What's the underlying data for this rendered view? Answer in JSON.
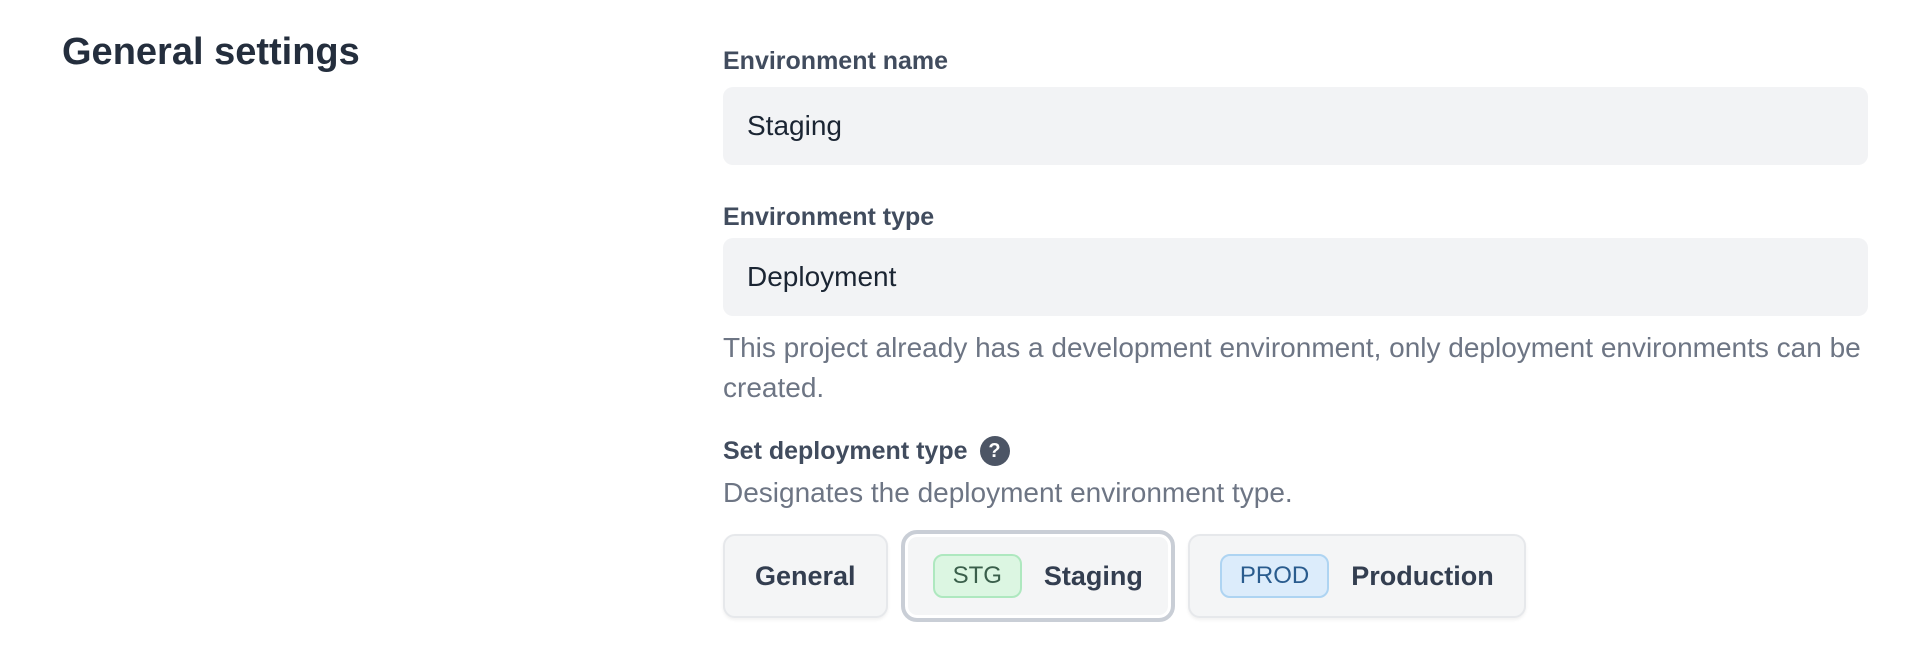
{
  "page": {
    "title": "General settings"
  },
  "form": {
    "environment_name": {
      "label": "Environment name",
      "value": "Staging"
    },
    "environment_type": {
      "label": "Environment type",
      "value": "Deployment",
      "help": "This project already has a development environment, only deployment environments can be created."
    },
    "deployment_type": {
      "label": "Set deployment type",
      "description": "Designates the deployment environment type.",
      "options": [
        {
          "label": "General",
          "selected": false
        },
        {
          "badge": "STG",
          "label": "Staging",
          "selected": true,
          "badge_bg": "#dcf6e2",
          "badge_border": "#aee8bf",
          "badge_text_color": "#3a5f4b"
        },
        {
          "badge": "PROD",
          "label": "Production",
          "selected": false,
          "badge_bg": "#dcecfb",
          "badge_border": "#aed4f2",
          "badge_text_color": "#2a5c8e"
        }
      ]
    }
  },
  "icons": {
    "help_icon": "?"
  },
  "colors": {
    "page_background": "#ffffff",
    "heading_text": "#242e3d",
    "label_text": "#414c5e",
    "input_background": "#f2f3f5",
    "input_text": "#1b2533",
    "muted_text": "#6d7584",
    "button_background": "#f4f5f6",
    "button_border": "#e6e8eb",
    "button_text": "#333e50",
    "selected_ring": "#c9ced6",
    "help_icon_background": "#4c5565"
  }
}
